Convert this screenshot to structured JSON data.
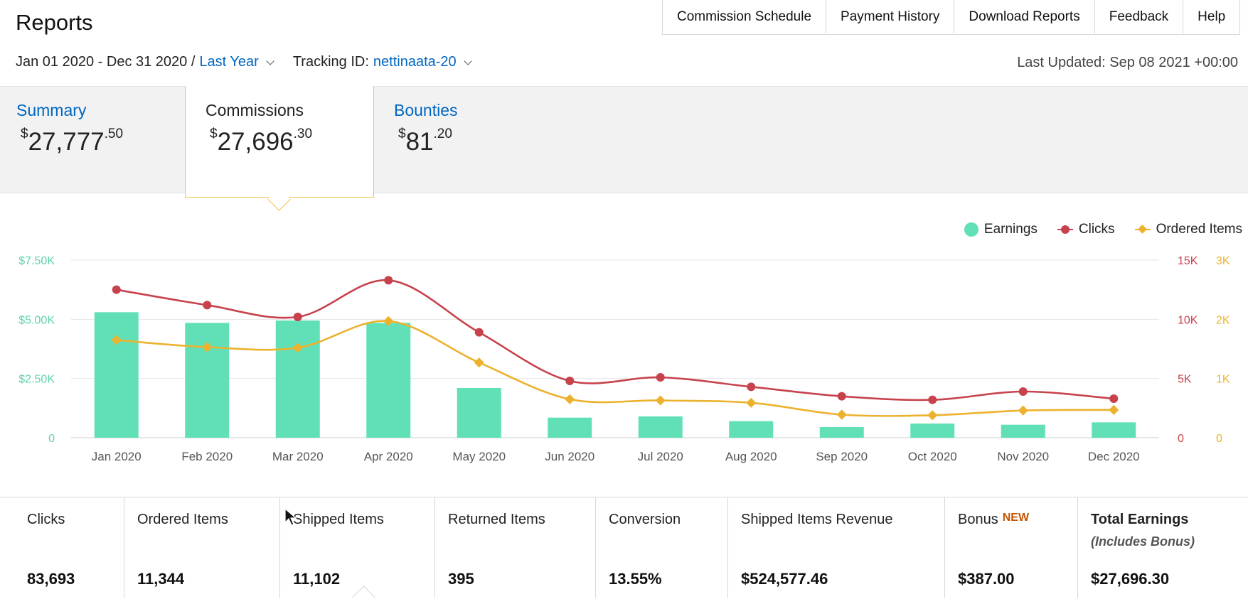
{
  "header": {
    "title": "Reports"
  },
  "top_nav": [
    {
      "label": "Commission Schedule"
    },
    {
      "label": "Payment History"
    },
    {
      "label": "Download Reports"
    },
    {
      "label": "Feedback"
    },
    {
      "label": "Help"
    }
  ],
  "filters": {
    "date_range": "Jan 01 2020 - Dec 31 2020 /",
    "range_preset": "Last Year",
    "tracking_label": "Tracking ID:",
    "tracking_id": "nettinaata-20",
    "last_updated": "Last Updated: Sep 08 2021 +00:00"
  },
  "summary_tabs": [
    {
      "label": "Summary",
      "currency": "$",
      "whole": "27,777",
      "cents": ".50"
    },
    {
      "label": "Commissions",
      "currency": "$",
      "whole": "27,696",
      "cents": ".30"
    },
    {
      "label": "Bounties",
      "currency": "$",
      "whole": "81",
      "cents": ".20"
    }
  ],
  "legend": {
    "earnings": "Earnings",
    "clicks": "Clicks",
    "ordered": "Ordered Items"
  },
  "colors": {
    "earnings": "#61e0b8",
    "clicks": "#c7424c",
    "ordered": "#ecb22e",
    "link": "#0066c0",
    "new_badge": "#c45500"
  },
  "chart_data": {
    "type": "bar",
    "categories": [
      "Jan 2020",
      "Feb 2020",
      "Mar 2020",
      "Apr 2020",
      "May 2020",
      "Jun 2020",
      "Jul 2020",
      "Aug 2020",
      "Sep 2020",
      "Oct 2020",
      "Nov 2020",
      "Dec 2020"
    ],
    "series": [
      {
        "name": "Earnings",
        "type": "bar",
        "axis": "left",
        "values": [
          5300,
          4850,
          4950,
          4850,
          2100,
          850,
          900,
          700,
          450,
          600,
          550,
          650
        ]
      },
      {
        "name": "Clicks",
        "type": "line",
        "axis": "right1",
        "values": [
          12500,
          11200,
          10200,
          13300,
          8900,
          4800,
          5100,
          4300,
          3500,
          3200,
          3900,
          3300
        ]
      },
      {
        "name": "Ordered Items",
        "type": "line",
        "axis": "right2",
        "values": [
          1650,
          1530,
          1520,
          1970,
          1270,
          650,
          630,
          590,
          390,
          380,
          460,
          470
        ]
      }
    ],
    "y_left": {
      "range": [
        0,
        7500
      ],
      "ticks": [
        "0",
        "$2.50K",
        "$5.00K",
        "$7.50K"
      ]
    },
    "y_right1": {
      "range": [
        0,
        15000
      ],
      "ticks": [
        "0",
        "5K",
        "10K",
        "15K"
      ]
    },
    "y_right2": {
      "range": [
        0,
        3000
      ],
      "ticks": [
        "0",
        "1K",
        "2K",
        "3K"
      ]
    },
    "grid": true,
    "legend_position": "top-right"
  },
  "metrics": [
    {
      "label": "Clicks",
      "value": "83,693"
    },
    {
      "label": "Ordered Items",
      "value": "11,344"
    },
    {
      "label": "Shipped Items",
      "value": "11,102"
    },
    {
      "label": "Returned Items",
      "value": "395"
    },
    {
      "label": "Conversion",
      "value": "13.55%"
    },
    {
      "label": "Shipped Items Revenue",
      "value": "$524,577.46"
    },
    {
      "label": "Bonus",
      "badge": "NEW",
      "value": "$387.00"
    },
    {
      "label": "Total Earnings",
      "sublabel": "(Includes Bonus)",
      "value": "$27,696.30"
    }
  ]
}
